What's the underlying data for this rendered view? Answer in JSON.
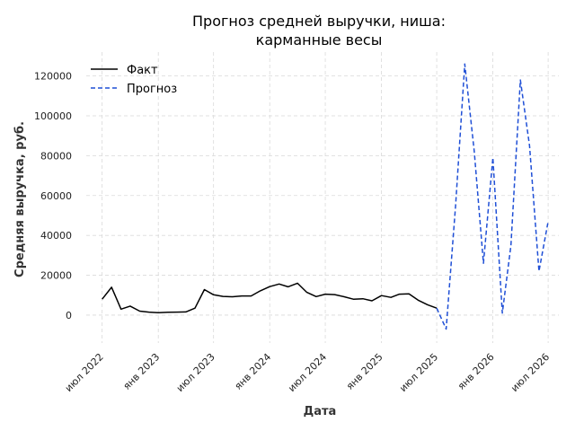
{
  "chart_data": {
    "type": "line",
    "title_lines": [
      "Прогноз средней выручки, ниша:",
      "карманные весы"
    ],
    "xlabel": "Дата",
    "ylabel": "Средняя выручка, руб.",
    "ylim": [
      -14000,
      132000
    ],
    "yticks": [
      0,
      20000,
      40000,
      60000,
      80000,
      100000,
      120000
    ],
    "ytick_labels": [
      "0",
      "20000",
      "40000",
      "60000",
      "80000",
      "100000",
      "120000"
    ],
    "xlim": [
      "2022-05-10",
      "2026-08-05"
    ],
    "xticks": [
      "2022-07-01",
      "2023-01-01",
      "2023-07-01",
      "2024-01-01",
      "2024-07-01",
      "2025-01-01",
      "2025-07-01",
      "2026-01-01",
      "2026-07-01"
    ],
    "xtick_labels": [
      "июл 2022",
      "янв 2023",
      "июл 2023",
      "янв 2024",
      "июл 2024",
      "янв 2025",
      "июл 2025",
      "янв 2026",
      "июл 2026"
    ],
    "grid": true,
    "legend_position": "top-left",
    "series": [
      {
        "name": "Факт",
        "color": "#000000",
        "style": "solid",
        "points": [
          [
            "2022-07-01",
            8000
          ],
          [
            "2022-08-01",
            14000
          ],
          [
            "2022-09-01",
            3000
          ],
          [
            "2022-10-01",
            4500
          ],
          [
            "2022-11-01",
            2000
          ],
          [
            "2022-12-01",
            1500
          ],
          [
            "2023-01-01",
            1200
          ],
          [
            "2023-02-01",
            1400
          ],
          [
            "2023-03-01",
            1500
          ],
          [
            "2023-04-01",
            1600
          ],
          [
            "2023-05-01",
            3500
          ],
          [
            "2023-06-01",
            12800
          ],
          [
            "2023-07-01",
            10200
          ],
          [
            "2023-08-01",
            9400
          ],
          [
            "2023-09-01",
            9200
          ],
          [
            "2023-10-01",
            9600
          ],
          [
            "2023-11-01",
            9600
          ],
          [
            "2023-12-01",
            12200
          ],
          [
            "2024-01-01",
            14300
          ],
          [
            "2024-02-01",
            15600
          ],
          [
            "2024-03-01",
            14200
          ],
          [
            "2024-04-01",
            16000
          ],
          [
            "2024-05-01",
            11500
          ],
          [
            "2024-06-01",
            9300
          ],
          [
            "2024-07-01",
            10500
          ],
          [
            "2024-08-01",
            10300
          ],
          [
            "2024-09-01",
            9200
          ],
          [
            "2024-10-01",
            8000
          ],
          [
            "2024-11-01",
            8200
          ],
          [
            "2024-12-01",
            7200
          ],
          [
            "2025-01-01",
            9800
          ],
          [
            "2025-02-01",
            8900
          ],
          [
            "2025-03-01",
            10500
          ],
          [
            "2025-04-01",
            10700
          ],
          [
            "2025-05-01",
            7500
          ],
          [
            "2025-06-01",
            5200
          ],
          [
            "2025-07-01",
            3500
          ]
        ]
      },
      {
        "name": "Прогноз",
        "color": "#1f4fd6",
        "style": "dashed",
        "points": [
          [
            "2025-07-01",
            3500
          ],
          [
            "2025-08-01",
            -7000
          ],
          [
            "2025-09-01",
            55000
          ],
          [
            "2025-10-01",
            126000
          ],
          [
            "2025-11-01",
            82000
          ],
          [
            "2025-12-01",
            26000
          ],
          [
            "2026-01-01",
            79000
          ],
          [
            "2026-02-01",
            1000
          ],
          [
            "2026-03-01",
            35000
          ],
          [
            "2026-04-01",
            118000
          ],
          [
            "2026-05-01",
            85000
          ],
          [
            "2026-06-01",
            22000
          ],
          [
            "2026-07-01",
            47000
          ]
        ]
      }
    ]
  }
}
